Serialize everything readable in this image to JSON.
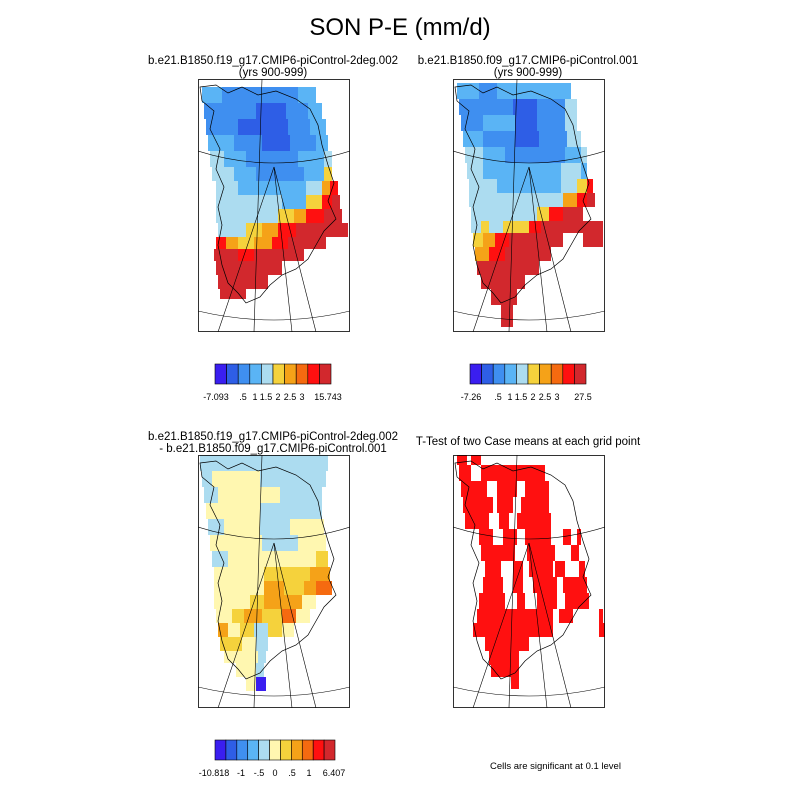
{
  "title": "SON P-E (mm/d)",
  "panels": [
    {
      "id": "case1",
      "title_line1": "b.e21.B1850.f19_g17.CMIP6-piControl-2deg.002",
      "title_line2": "(yrs 900-999)",
      "colorbar": {
        "colors": [
          "#3a1ef0",
          "#2e5ee6",
          "#3f8ff0",
          "#5ab4f5",
          "#acdcf0",
          "#f5d23c",
          "#f5a218",
          "#f56a10",
          "#ff1010",
          "#d2282d"
        ],
        "labels": [
          "-7.093",
          ".5",
          "1",
          "1.5",
          "2",
          "2.5",
          "3",
          "15.743"
        ]
      }
    },
    {
      "id": "case2",
      "title_line1": "b.e21.B1850.f09_g17.CMIP6-piControl.001",
      "title_line2": "(yrs 900-999)",
      "colorbar": {
        "colors": [
          "#3a1ef0",
          "#2e5ee6",
          "#3f8ff0",
          "#5ab4f5",
          "#acdcf0",
          "#f5d23c",
          "#f5a218",
          "#f56a10",
          "#ff1010",
          "#d2282d"
        ],
        "labels": [
          "-7.26",
          ".5",
          "1",
          "1.5",
          "2",
          "2.5",
          "3",
          "27.5"
        ]
      }
    },
    {
      "id": "diff",
      "title_line1": "b.e21.B1850.f19_g17.CMIP6-piControl-2deg.002",
      "title_line2": "- b.e21.B1850.f09_g17.CMIP6-piControl.001",
      "colorbar": {
        "colors": [
          "#3a1ef0",
          "#2e5ee6",
          "#3f8ff0",
          "#5ab4f5",
          "#acdcf0",
          "#fff7b0",
          "#f5d23c",
          "#f5a218",
          "#f56a10",
          "#ff1010",
          "#d2282d"
        ],
        "labels": [
          "-10.818",
          "-1",
          "-.5",
          "0",
          ".5",
          "1",
          "6.407"
        ]
      }
    },
    {
      "id": "ttest",
      "title_line1": "T-Test of two Case means at each grid point",
      "title_line2": "",
      "note": "Cells are significant at 0.1 level"
    }
  ],
  "chart_data": [
    {
      "type": "heatmap",
      "title": "b.e21.B1850.f19_g17.CMIP6-piControl-2deg.002 (yrs 900-999)",
      "variable": "SON P-E (mm/d)",
      "region": "Greenland",
      "range": [
        -7.093,
        15.743
      ],
      "pattern": "negative (blue) over northern and central ice sheet, positive (orange/red) along southern and southeastern margins"
    },
    {
      "type": "heatmap",
      "title": "b.e21.B1850.f09_g17.CMIP6-piControl.001 (yrs 900-999)",
      "variable": "SON P-E (mm/d)",
      "region": "Greenland",
      "range": [
        -7.26,
        27.5
      ],
      "pattern": "negative (blue) over most of ice sheet, positive (red) confined to southern tip and southeast coast"
    },
    {
      "type": "heatmap",
      "title": "b.e21.B1850.f19_g17.CMIP6-piControl-2deg.002 - b.e21.B1850.f09_g17.CMIP6-piControl.001",
      "variable": "SON P-E difference (mm/d)",
      "region": "Greenland",
      "range": [
        -10.818,
        6.407
      ],
      "pattern": "small positive (yellow) over most of ice sheet, orange in south-east, light blue over north and interior strip, one strong negative cell at southern tip"
    },
    {
      "type": "heatmap",
      "title": "T-Test of two Case means at each grid point",
      "variable": "significance mask",
      "region": "Greenland",
      "pattern": "red cells significant at 0.1 level covering most of the ice sheet"
    }
  ]
}
